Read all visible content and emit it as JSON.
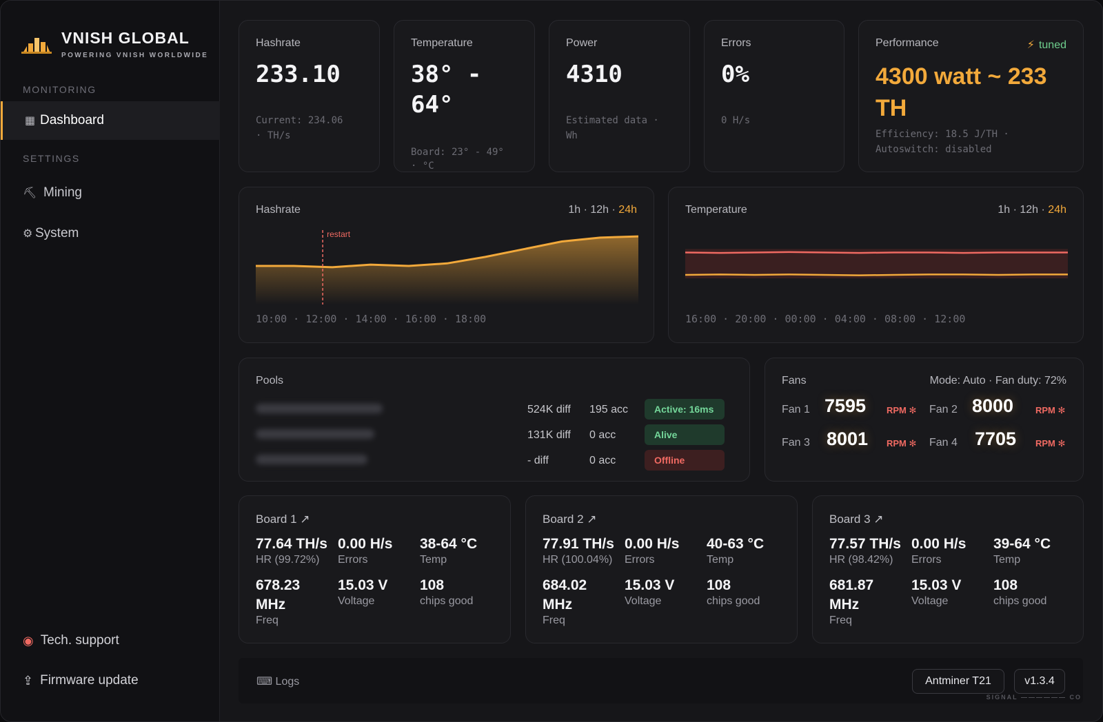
{
  "brand": {
    "name": "VNISH GLOBAL",
    "tagline": "POWERING VNISH WORLDWIDE",
    "accent": "#f2a93b"
  },
  "sidebar": {
    "section_monitoring": "MONITORING",
    "section_settings": "SETTINGS",
    "items": [
      {
        "label": "Dashboard",
        "icon": "grid-icon",
        "active": true
      },
      {
        "label": "Mining",
        "icon": "pickaxe-icon"
      },
      {
        "label": "System",
        "icon": "gear-icon"
      }
    ],
    "footer": [
      {
        "label": "Tech. support",
        "icon": "lifebuoy-icon"
      },
      {
        "label": "Firmware update",
        "icon": "upload-icon"
      }
    ]
  },
  "stats": {
    "hashrate": {
      "title": "Hashrate",
      "value": "233.10",
      "sub1": "Current: 234.06",
      "sub2": "· TH/s"
    },
    "temperature": {
      "title": "Temperature",
      "value1": "38° -",
      "value2": "64°",
      "sub1": "Board: 23° - 49°",
      "sub2": "· °C"
    },
    "power": {
      "title": "Power",
      "value": "4310",
      "sub1": "Estimated data ·",
      "sub2": "Wh"
    },
    "errors": {
      "title": "Errors",
      "value": "0%",
      "sub1": "0 H/s"
    },
    "performance": {
      "title": "Performance",
      "badge": "tuned",
      "value": "4300 watt ~ 233 TH",
      "sub1": "Efficiency: 18.5 J/TH ·",
      "sub2": "Autoswitch: disabled"
    }
  },
  "charts": {
    "hashrate": {
      "title": "Hashrate",
      "range_1h": "1h",
      "range_12h": "12h",
      "range_24h": "24h",
      "sep": "·",
      "annotation": "restart",
      "axis": "10:00 · 12:00 · 14:00 · 16:00 · 18:00"
    },
    "temperature": {
      "title": "Temperature",
      "range_1h": "1h",
      "range_12h": "12h",
      "range_24h": "24h",
      "sep": "·",
      "axis": "16:00 · 20:00 · 00:00 · 04:00 · 08:00 · 12:00"
    }
  },
  "chart_data": [
    {
      "type": "area",
      "title": "Hashrate",
      "x": [
        "10:00",
        "11:00",
        "12:00",
        "13:00",
        "14:00",
        "15:00",
        "16:00",
        "17:00",
        "18:00",
        "19:00",
        "20:00"
      ],
      "values": [
        225,
        225,
        224.5,
        225.5,
        225,
        226,
        228.5,
        231.5,
        234.5,
        236,
        236.5
      ],
      "annotation": {
        "x": "11:45",
        "label": "restart"
      },
      "color": "#f2a93b"
    },
    {
      "type": "line",
      "title": "Temperature",
      "x": [
        "16:00",
        "18:00",
        "20:00",
        "22:00",
        "00:00",
        "02:00",
        "04:00",
        "06:00",
        "08:00",
        "10:00",
        "12:00",
        "14:00"
      ],
      "series": [
        {
          "values": [
            64,
            63.5,
            64,
            64.5,
            64,
            63.5,
            64,
            64,
            63.5,
            64,
            64,
            64
          ],
          "color": "#f06a62"
        },
        {
          "values": [
            38,
            38.5,
            38,
            38.5,
            38,
            37.5,
            38,
            38.5,
            38.5,
            38,
            38.5,
            38.5
          ],
          "color": "#f2a93b"
        }
      ],
      "band": [
        34,
        68
      ]
    }
  ],
  "pools": {
    "title": "Pools",
    "rows": [
      {
        "diff": "524K diff",
        "acc": "195 acc",
        "status": "Active: 16ms",
        "tone": "green"
      },
      {
        "diff": "131K diff",
        "acc": "0 acc",
        "status": "Alive",
        "tone": "green"
      },
      {
        "diff": "- diff",
        "acc": "0 acc",
        "status": "Offline",
        "tone": "red"
      }
    ]
  },
  "fans": {
    "title": "Fans",
    "mode": "Mode: Auto · Fan duty: 72%",
    "unit": "RPM ✻",
    "items": [
      {
        "label": "Fan 1",
        "rpm": "7595"
      },
      {
        "label": "Fan 2",
        "rpm": "8000"
      },
      {
        "label": "Fan 3",
        "rpm": "8001"
      },
      {
        "label": "Fan 4",
        "rpm": "7705"
      }
    ]
  },
  "boards": [
    {
      "title": "Board 1 ↗",
      "hr": "77.64 TH/s",
      "hr_lbl": "HR (99.72%)",
      "err": "0.00 H/s",
      "err_lbl": "Errors",
      "temp": "38-64 °C",
      "temp_lbl": "Temp",
      "freq1": "678.23",
      "freq2": "MHz",
      "freq_lbl": "Freq",
      "volt": "15.03 V",
      "volt_lbl": "Voltage",
      "chips": "108",
      "chips_lbl": "chips good"
    },
    {
      "title": "Board 2 ↗",
      "hr": "77.91 TH/s",
      "hr_lbl": "HR (100.04%)",
      "err": "0.00 H/s",
      "err_lbl": "Errors",
      "temp": "40-63 °C",
      "temp_lbl": "Temp",
      "freq1": "684.02",
      "freq2": "MHz",
      "freq_lbl": "Freq",
      "volt": "15.03 V",
      "volt_lbl": "Voltage",
      "chips": "108",
      "chips_lbl": "chips good"
    },
    {
      "title": "Board 3 ↗",
      "hr": "77.57 TH/s",
      "hr_lbl": "HR (98.42%)",
      "err": "0.00 H/s",
      "err_lbl": "Errors",
      "temp": "39-64 °C",
      "temp_lbl": "Temp",
      "freq1": "681.87",
      "freq2": "MHz",
      "freq_lbl": "Freq",
      "volt": "15.03 V",
      "volt_lbl": "Voltage",
      "chips": "108",
      "chips_lbl": "chips good"
    }
  ],
  "footer": {
    "logs": "⌨ Logs",
    "model": "Antminer T21",
    "version": "v1.3.4",
    "signal": "SIGNAL —————— CO"
  }
}
